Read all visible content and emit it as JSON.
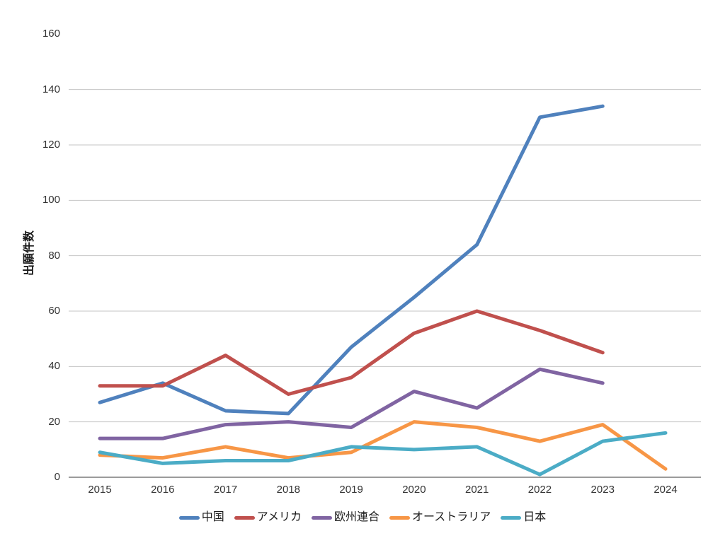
{
  "chart_data": {
    "type": "line",
    "title": "",
    "xlabel": "",
    "ylabel": "出願件数",
    "x": [
      2015,
      2016,
      2017,
      2018,
      2019,
      2020,
      2021,
      2022,
      2023,
      2024
    ],
    "yticks": [
      0,
      20,
      40,
      60,
      80,
      100,
      120,
      140,
      160
    ],
    "ylim": [
      0,
      160
    ],
    "grid": true,
    "gridline_color": "#c6c6c6",
    "axis_line_color": "#9b9b9b",
    "legend_position": "bottom",
    "series": [
      {
        "name": "中国",
        "color": "#4F81BD",
        "values": [
          27,
          34,
          24,
          23,
          47,
          65,
          84,
          130,
          134,
          null
        ]
      },
      {
        "name": "アメリカ",
        "color": "#C0504D",
        "values": [
          33,
          33,
          44,
          30,
          36,
          52,
          60,
          53,
          45,
          null
        ]
      },
      {
        "name": "欧州連合",
        "color": "#8064A2",
        "values": [
          14,
          14,
          19,
          20,
          18,
          31,
          25,
          39,
          34,
          null
        ]
      },
      {
        "name": "オーストラリア",
        "color": "#F79646",
        "values": [
          8,
          7,
          11,
          7,
          9,
          20,
          18,
          13,
          19,
          3
        ]
      },
      {
        "name": "日本",
        "color": "#4BACC6",
        "values": [
          9,
          5,
          6,
          6,
          11,
          10,
          11,
          1,
          13,
          16
        ]
      }
    ]
  }
}
